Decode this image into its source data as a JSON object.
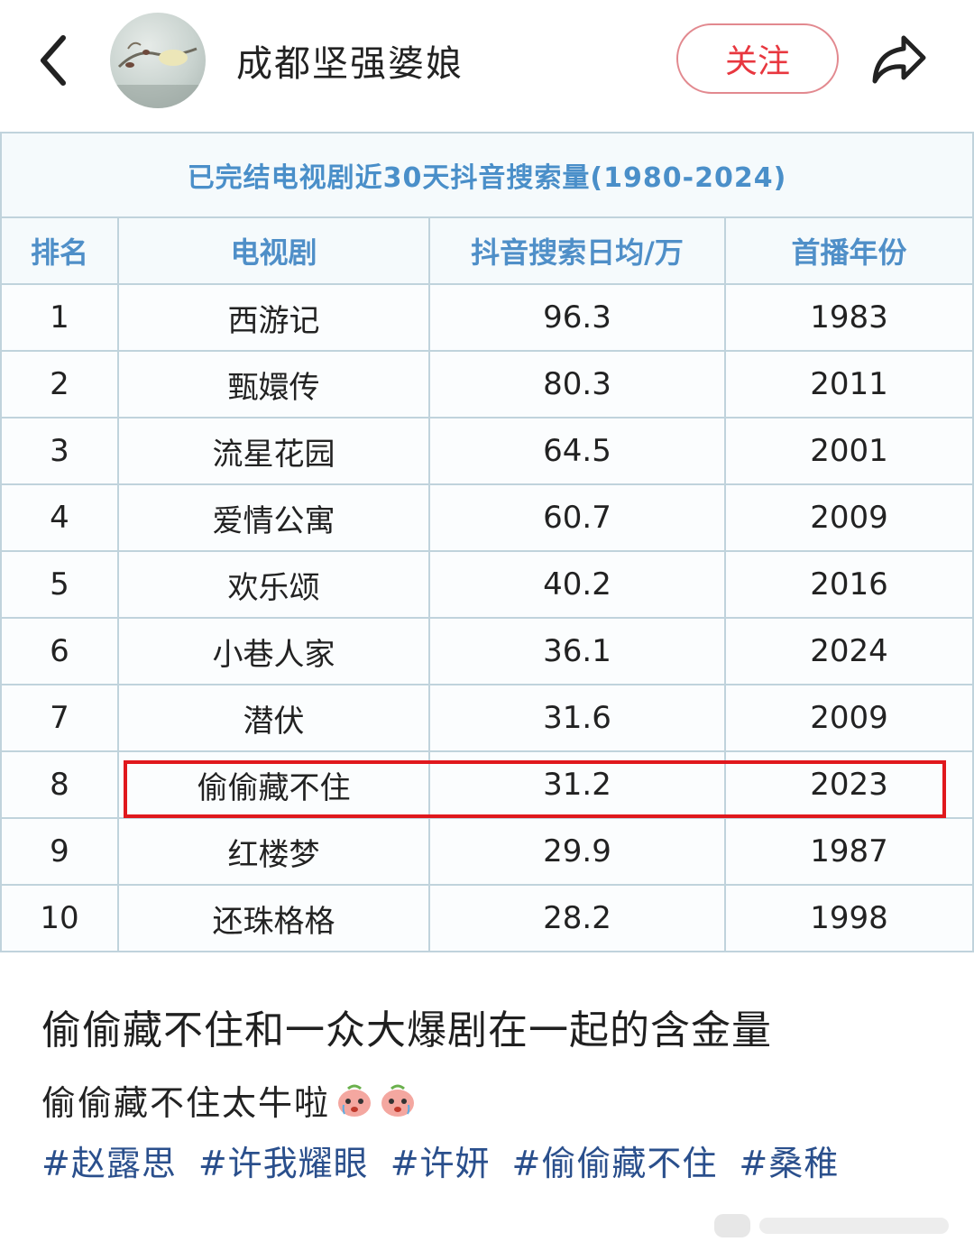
{
  "header": {
    "username": "成都坚强婆娘",
    "follow_label": "关注"
  },
  "table": {
    "caption": "已完结电视剧近30天抖音搜索量(1980-2024)",
    "columns": [
      "排名",
      "电视剧",
      "抖音搜索日均/万",
      "首播年份"
    ],
    "rows": [
      {
        "rank": "1",
        "title": "西游记",
        "searches": "96.3",
        "year": "1983"
      },
      {
        "rank": "2",
        "title": "甄嬛传",
        "searches": "80.3",
        "year": "2011"
      },
      {
        "rank": "3",
        "title": "流星花园",
        "searches": "64.5",
        "year": "2001"
      },
      {
        "rank": "4",
        "title": "爱情公寓",
        "searches": "60.7",
        "year": "2009"
      },
      {
        "rank": "5",
        "title": "欢乐颂",
        "searches": "40.2",
        "year": "2016"
      },
      {
        "rank": "6",
        "title": "小巷人家",
        "searches": "36.1",
        "year": "2024"
      },
      {
        "rank": "7",
        "title": "潜伏",
        "searches": "31.6",
        "year": "2009"
      },
      {
        "rank": "8",
        "title": "偷偷藏不住",
        "searches": "31.2",
        "year": "2023"
      },
      {
        "rank": "9",
        "title": "红楼梦",
        "searches": "29.9",
        "year": "1987"
      },
      {
        "rank": "10",
        "title": "还珠格格",
        "searches": "28.2",
        "year": "1998"
      }
    ],
    "highlight_color": "#e0181d"
  },
  "post": {
    "title": "偷偷藏不住和一众大爆剧在一起的含金量",
    "body": "偷偷藏不住太牛啦",
    "tags": [
      "#赵露思",
      "#许我耀眼",
      "#许妍",
      "#偷偷藏不住",
      "#桑稚"
    ]
  },
  "colors": {
    "accent": "#e8373f",
    "tag": "#2a4f8c",
    "table_header": "#4f8fc8"
  }
}
